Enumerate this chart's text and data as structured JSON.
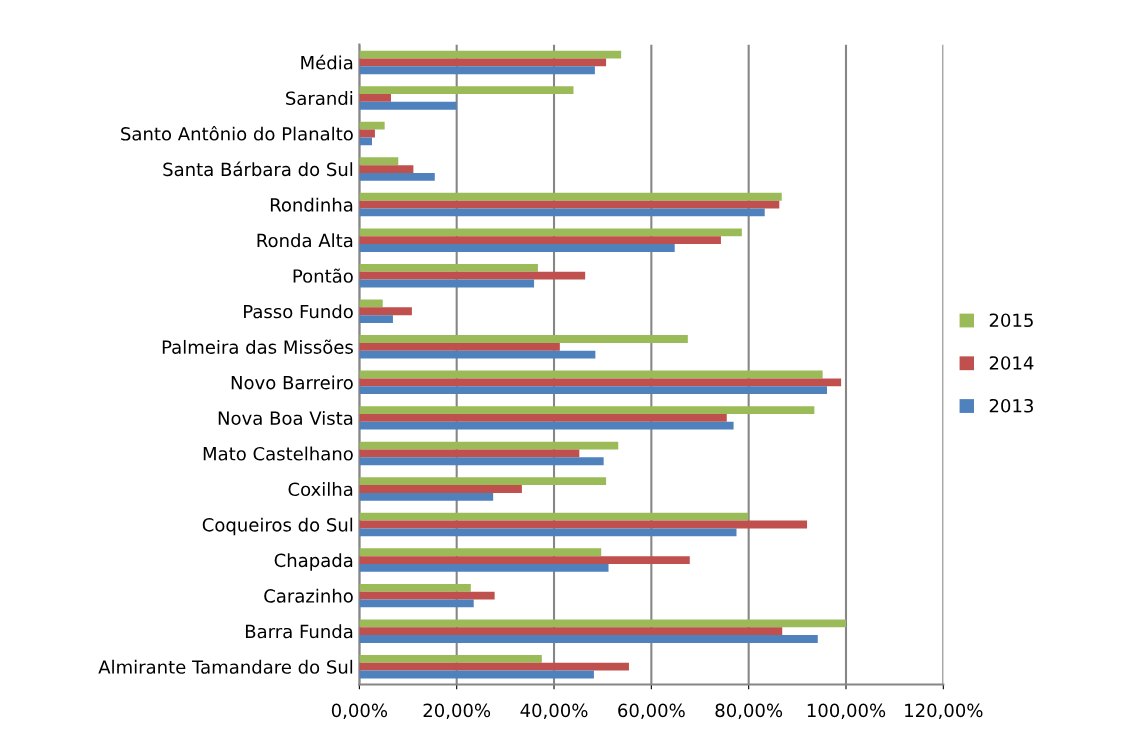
{
  "chart_data": {
    "type": "bar",
    "orientation": "horizontal",
    "categories": [
      "Média",
      "Sarandi",
      "Santo Antônio do Planalto",
      "Santa Bárbara do Sul",
      "Rondinha",
      "Ronda Alta",
      "Pontão",
      "Passo Fundo",
      "Palmeira das Missões",
      "Novo Barreiro",
      "Nova Boa Vista",
      "Mato Castelhano",
      "Coxilha",
      "Coqueiros do Sul",
      "Chapada",
      "Carazinho",
      "Barra Funda",
      "Almirante Tamandare do Sul"
    ],
    "series": [
      {
        "name": "2015",
        "color": "#9bbb59",
        "values": [
          53.8,
          44.0,
          5.2,
          8.0,
          86.8,
          78.6,
          36.7,
          4.8,
          67.5,
          95.2,
          93.5,
          53.2,
          50.7,
          79.9,
          49.7,
          22.9,
          100.0,
          37.5
        ]
      },
      {
        "name": "2014",
        "color": "#c0504d",
        "values": [
          50.7,
          6.5,
          3.2,
          11.1,
          86.3,
          74.3,
          46.4,
          10.8,
          41.2,
          99.0,
          75.5,
          45.2,
          33.4,
          92.0,
          67.9,
          27.8,
          86.9,
          55.4
        ]
      },
      {
        "name": "2013",
        "color": "#4f81bd",
        "values": [
          48.4,
          20.0,
          2.6,
          15.5,
          83.3,
          64.8,
          35.9,
          6.9,
          48.5,
          96.1,
          76.9,
          50.2,
          27.5,
          77.5,
          51.2,
          23.5,
          94.2,
          48.2
        ]
      }
    ],
    "xlim": [
      0,
      120
    ],
    "xticks": [
      {
        "value": 0,
        "label": "0,00%"
      },
      {
        "value": 20,
        "label": "20,00%"
      },
      {
        "value": 40,
        "label": "40,00%"
      },
      {
        "value": 60,
        "label": "60,00%"
      },
      {
        "value": 80,
        "label": "80,00%"
      },
      {
        "value": 100,
        "label": "100,00%"
      },
      {
        "value": 120,
        "label": "120,00%"
      }
    ],
    "grid": "x",
    "legend": "right"
  }
}
